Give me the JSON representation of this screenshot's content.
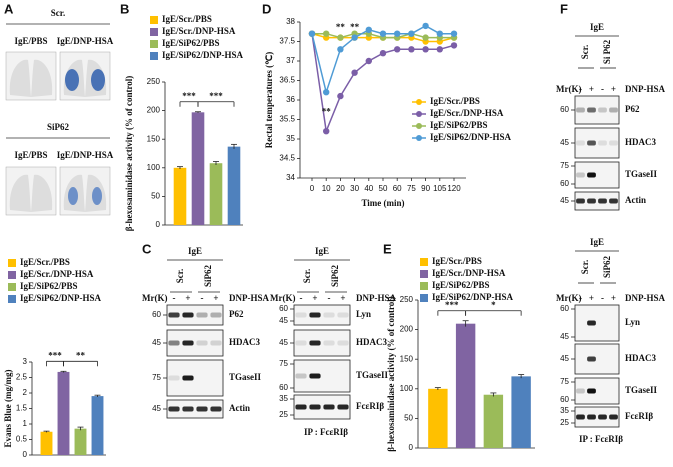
{
  "panels": [
    "A",
    "B",
    "C",
    "D",
    "E",
    "F"
  ],
  "panel_a": {
    "groups": [
      "Scr.",
      "SiP62"
    ],
    "image_labels": [
      "IgE/PBS",
      "IgE/DNP-HSA"
    ]
  },
  "chart_data": [
    {
      "type": "bar",
      "ylabel": "Evans Blue (mg/mg)",
      "categories": [
        "IgE/Scr./PBS",
        "IgE/Scr./DNP-HSA",
        "IgE/SiP62/PBS",
        "IgE/SiP62/DNP-HSA"
      ],
      "colors": [
        "#ffc000",
        "#8064a2",
        "#9bbb59",
        "#4f81bd"
      ],
      "values": [
        0.75,
        2.68,
        0.85,
        1.9
      ],
      "errors": [
        0.02,
        0.02,
        0.05,
        0.03
      ],
      "ylim": [
        0,
        3
      ],
      "yticks": [
        0,
        0.5,
        1,
        1.5,
        2,
        2.5,
        3
      ],
      "annotations": [
        "***",
        "**"
      ]
    },
    {
      "type": "bar",
      "ylabel": "β-hexosaminidase activity (% of control)",
      "categories": [
        "IgE/Scr./PBS",
        "IgE/Scr./DNP-HSA",
        "IgE/SiP62/PBS",
        "IgE/SiP62/DNP-HSA"
      ],
      "colors": [
        "#ffc000",
        "#8064a2",
        "#9bbb59",
        "#4f81bd"
      ],
      "values": [
        100,
        197,
        108,
        137
      ],
      "errors": [
        2,
        1,
        3,
        4
      ],
      "ylim": [
        0,
        250
      ],
      "yticks": [
        0,
        50,
        100,
        150,
        200,
        250
      ],
      "annotations": [
        "***",
        "***"
      ]
    },
    {
      "type": "line",
      "ylabel": "Rectal temperatures (℃)",
      "xlabel": "Time (min)",
      "categories": [
        "0",
        "10",
        "20",
        "30",
        "40",
        "50",
        "60",
        "75",
        "90",
        "105",
        "120"
      ],
      "series": [
        {
          "name": "IgE/Scr./PBS",
          "color": "#ffc000",
          "values": [
            37.7,
            37.6,
            37.6,
            37.6,
            37.6,
            37.6,
            37.6,
            37.6,
            37.5,
            37.5,
            37.6
          ]
        },
        {
          "name": "IgE/Scr./DNP-HSA",
          "color": "#7b5ea7",
          "values": [
            37.7,
            35.2,
            36.1,
            36.7,
            37.0,
            37.2,
            37.3,
            37.3,
            37.3,
            37.3,
            37.4
          ]
        },
        {
          "name": "IgE/SiP62/PBS",
          "color": "#9bbb59",
          "values": [
            37.7,
            37.7,
            37.6,
            37.7,
            37.7,
            37.6,
            37.6,
            37.7,
            37.6,
            37.6,
            37.6
          ]
        },
        {
          "name": "IgE/SiP62/DNP-HSA",
          "color": "#4f9bd5",
          "values": [
            37.7,
            36.2,
            37.3,
            37.6,
            37.8,
            37.7,
            37.7,
            37.7,
            37.9,
            37.7,
            37.7
          ]
        }
      ],
      "ylim": [
        34,
        38
      ],
      "yticks": [
        34,
        34.5,
        35,
        35.5,
        36,
        36.5,
        37,
        37.5,
        38
      ],
      "annotations": [
        "**",
        "**",
        "**"
      ]
    },
    {
      "type": "bar",
      "ylabel": "β-hexosaminidase activity (% of control)",
      "categories": [
        "IgE/Scr./PBS",
        "IgE/Scr./DNP-HSA",
        "IgE/SiP62/PBS",
        "IgE/SiP62/DNP-HSA"
      ],
      "colors": [
        "#ffc000",
        "#8064a2",
        "#9bbb59",
        "#4f81bd"
      ],
      "values": [
        100,
        210,
        90,
        121
      ],
      "errors": [
        2,
        5,
        3,
        3
      ],
      "ylim": [
        0,
        250
      ],
      "yticks": [
        0,
        50,
        100,
        150,
        200,
        250
      ],
      "annotations": [
        "***",
        "*"
      ]
    }
  ],
  "blots": [
    {
      "group": "IgE",
      "lanes": [
        "Scr.",
        "SiP62"
      ],
      "mr": "Mr(K)",
      "signs": [
        "-",
        "+",
        "-",
        "+"
      ],
      "treatment": "DNP-HSA",
      "rows": [
        {
          "protein": "P62",
          "markers": [
            60
          ]
        },
        {
          "protein": "HDAC3",
          "markers": [
            45
          ]
        },
        {
          "protein": "TGaseII",
          "markers": [
            75
          ]
        },
        {
          "protein": "Actin",
          "markers": [
            45
          ]
        }
      ]
    },
    {
      "group": "IgE",
      "lanes": [
        "Scr.",
        "SiP62"
      ],
      "mr": "Mr(K)",
      "signs": [
        "-",
        "+",
        "-",
        "+"
      ],
      "treatment": "DNP-HSA",
      "rows": [
        {
          "protein": "Lyn",
          "markers": [
            60,
            45
          ]
        },
        {
          "protein": "HDAC3",
          "markers": [
            45
          ]
        },
        {
          "protein": "TGaseII",
          "markers": [
            75,
            60
          ]
        },
        {
          "protein": "FcεRIβ",
          "markers": [
            35,
            25
          ]
        }
      ],
      "footer": "IP : FcεRIβ"
    },
    {
      "group": "IgE",
      "lanes": [
        "Scr.",
        "Si P62"
      ],
      "mr": "Mr(K)",
      "signs": [
        "-",
        "+",
        "-",
        "+"
      ],
      "treatment": "DNP-HSA",
      "rows": [
        {
          "protein": "P62",
          "markers": [
            60
          ]
        },
        {
          "protein": "HDAC3",
          "markers": [
            45
          ]
        },
        {
          "protein": "TGaseII",
          "markers": [
            75,
            60
          ]
        },
        {
          "protein": "Actin",
          "markers": [
            45
          ]
        }
      ]
    },
    {
      "group": "IgE",
      "lanes": [
        "Scr.",
        "SiP62"
      ],
      "mr": "Mr(K)",
      "signs": [
        "-",
        "+",
        "-",
        "+"
      ],
      "treatment": "DNP-HSA",
      "rows": [
        {
          "protein": "Lyn",
          "markers": [
            60,
            45
          ]
        },
        {
          "protein": "HDAC3",
          "markers": [
            45
          ]
        },
        {
          "protein": "TGaseII",
          "markers": [
            75,
            60
          ]
        },
        {
          "protein": "FcεRIβ",
          "markers": [
            35,
            25
          ]
        }
      ],
      "footer": "IP : FcεRIβ"
    }
  ]
}
